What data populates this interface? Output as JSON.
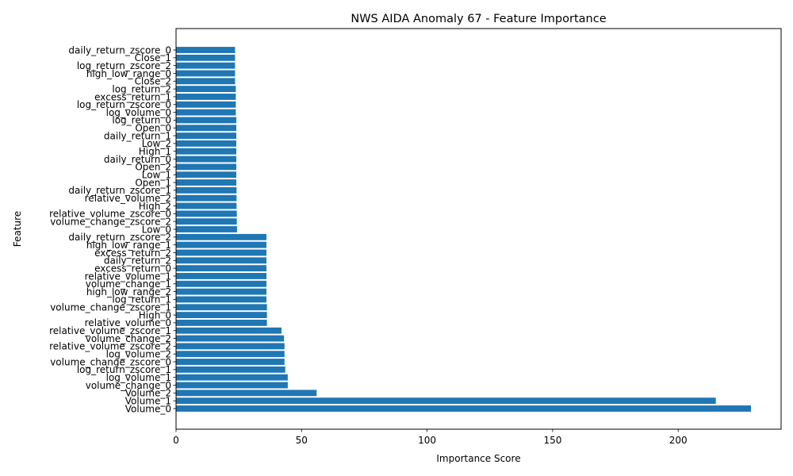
{
  "chart_data": {
    "type": "bar",
    "orientation": "horizontal",
    "title": "NWS AIDA Anomaly 67 - Feature Importance",
    "xlabel": "Importance Score",
    "ylabel": "Feature",
    "xlim": [
      0,
      241
    ],
    "xticks": [
      0,
      50,
      100,
      150,
      200
    ],
    "grid": false,
    "legend": "none",
    "bar_color": "#1f77b4",
    "categories": [
      "Volume_0",
      "Volume_1",
      "Volume_2",
      "volume_change_0",
      "log_volume_1",
      "log_return_zscore_1",
      "volume_change_zscore_0",
      "log_volume_2",
      "relative_volume_zscore_2",
      "volume_change_2",
      "relative_volume_zscore_1",
      "relative_volume_0",
      "High_0",
      "volume_change_zscore_1",
      "log_return_1",
      "high_low_range_2",
      "volume_change_1",
      "relative_volume_1",
      "excess_return_0",
      "daily_return_2",
      "excess_return_2",
      "high_low_range_1",
      "daily_return_zscore_2",
      "Low_0",
      "volume_change_zscore_2",
      "relative_volume_zscore_0",
      "High_2",
      "relative_volume_2",
      "daily_return_zscore_1",
      "Open_1",
      "Low_1",
      "Open_2",
      "daily_return_0",
      "High_1",
      "Low_2",
      "daily_return_1",
      "Open_0",
      "log_return_0",
      "log_volume_0",
      "log_return_zscore_0",
      "excess_return_1",
      "log_return_2",
      "Close_2",
      "high_low_range_0",
      "log_return_zscore_2",
      "Close_1",
      "daily_return_zscore_0"
    ],
    "values": [
      229,
      215,
      56,
      44.5,
      44.5,
      43.5,
      43.2,
      43.2,
      43.2,
      43,
      42,
      36.2,
      36.2,
      36.2,
      36,
      36,
      36,
      36,
      36,
      36,
      36,
      36,
      36,
      24.3,
      24.2,
      24.2,
      24.1,
      24.1,
      24.1,
      24,
      24,
      24,
      24,
      24,
      24,
      24,
      24,
      24,
      23.8,
      23.8,
      23.8,
      23.8,
      23.5,
      23.5,
      23.5,
      23.5,
      23.5
    ]
  }
}
